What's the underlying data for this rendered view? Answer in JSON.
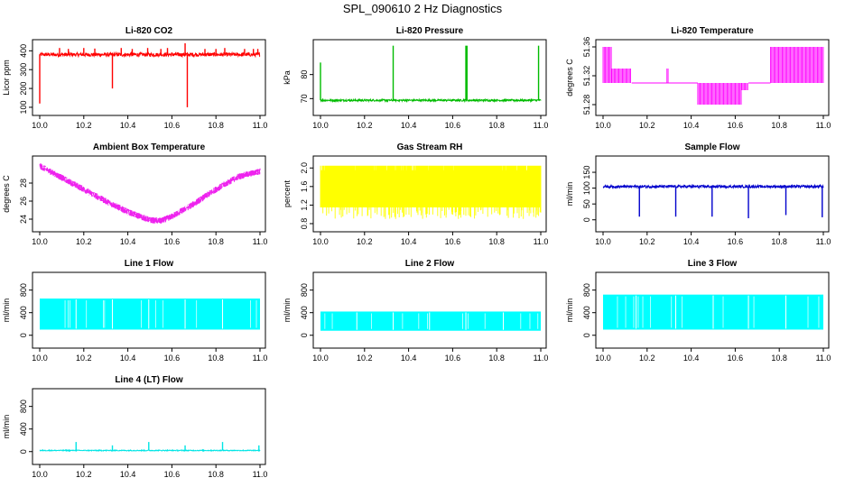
{
  "figure_title": "SPL_090610  2 Hz Diagnostics",
  "chart_data": [
    {
      "id": "co2",
      "type": "line",
      "title": "Li-820 CO2",
      "ylabel": "Licor ppm",
      "color": "#ff0000",
      "x_range": [
        10.0,
        11.0
      ],
      "ylim": [
        95,
        440
      ],
      "x_ticks": [
        "10.0",
        "10.2",
        "10.4",
        "10.6",
        "10.8",
        "11.0"
      ],
      "y_ticks": [
        "100",
        "200",
        "300",
        "400"
      ],
      "base": 380,
      "noise": 10,
      "spikes": [
        [
          10.0,
          120
        ],
        [
          10.09,
          415
        ],
        [
          10.13,
          410
        ],
        [
          10.2,
          415
        ],
        [
          10.25,
          412
        ],
        [
          10.33,
          200
        ],
        [
          10.37,
          415
        ],
        [
          10.42,
          410
        ],
        [
          10.49,
          415
        ],
        [
          10.55,
          410
        ],
        [
          10.58,
          415
        ],
        [
          10.66,
          440
        ],
        [
          10.67,
          100
        ],
        [
          10.75,
          410
        ],
        [
          10.8,
          410
        ],
        [
          10.84,
          415
        ],
        [
          10.93,
          410
        ],
        [
          10.97,
          410
        ],
        [
          10.99,
          410
        ]
      ]
    },
    {
      "id": "pres",
      "type": "line",
      "title": "Li-820 Pressure",
      "ylabel": "kPa",
      "color": "#00bb00",
      "x_range": [
        10.0,
        11.0
      ],
      "ylim": [
        66,
        93
      ],
      "x_ticks": [
        "10.0",
        "10.2",
        "10.4",
        "10.6",
        "10.8",
        "11.0"
      ],
      "y_ticks": [
        "70",
        "80"
      ],
      "base": 69.3,
      "noise": 0.4,
      "spikes": [
        [
          10.0,
          85
        ],
        [
          10.33,
          92
        ],
        [
          10.66,
          92
        ],
        [
          10.665,
          92
        ],
        [
          10.99,
          92
        ]
      ]
    },
    {
      "id": "temp",
      "type": "band",
      "title": "Li-820 Temperature",
      "ylabel": "degrees C",
      "color": "#ff00ff",
      "x_range": [
        10.0,
        11.0
      ],
      "ylim": [
        51.275,
        51.365
      ],
      "x_ticks": [
        "10.0",
        "10.2",
        "10.4",
        "10.6",
        "10.8",
        "11.0"
      ],
      "y_ticks": [
        "51.28",
        "51.32",
        "51.36"
      ],
      "segments": [
        [
          10.0,
          10.04,
          51.31,
          51.36
        ],
        [
          10.04,
          10.13,
          51.31,
          51.33
        ],
        [
          10.13,
          10.43,
          51.31,
          51.31
        ],
        [
          10.29,
          10.3,
          51.31,
          51.33
        ],
        [
          10.43,
          10.63,
          51.28,
          51.31
        ],
        [
          10.63,
          10.66,
          51.3,
          51.31
        ],
        [
          10.66,
          10.76,
          51.31,
          51.31
        ],
        [
          10.76,
          11.0,
          51.31,
          51.36
        ]
      ]
    },
    {
      "id": "box",
      "type": "band",
      "title": "Ambient Box Temperature",
      "ylabel": "degrees C",
      "color": "#ee22ee",
      "x_range": [
        10.0,
        11.0
      ],
      "ylim": [
        23.4,
        30.6
      ],
      "x_ticks": [
        "10.0",
        "10.2",
        "10.4",
        "10.6",
        "10.8",
        "11.0"
      ],
      "y_ticks": [
        "24",
        "26",
        "28"
      ],
      "curve": [
        [
          10.0,
          29.9
        ],
        [
          10.1,
          28.6
        ],
        [
          10.2,
          27.3
        ],
        [
          10.3,
          26.0
        ],
        [
          10.4,
          24.8
        ],
        [
          10.5,
          23.9
        ],
        [
          10.55,
          23.8
        ],
        [
          10.6,
          24.3
        ],
        [
          10.7,
          25.7
        ],
        [
          10.8,
          27.3
        ],
        [
          10.9,
          28.7
        ],
        [
          11.0,
          29.3
        ]
      ],
      "half_width": 0.35
    },
    {
      "id": "rh",
      "type": "band",
      "title": "Gas Stream RH",
      "ylabel": "percent",
      "color": "#ffff00",
      "x_range": [
        10.0,
        11.0
      ],
      "ylim": [
        0.78,
        2.18
      ],
      "x_ticks": [
        "10.0",
        "10.2",
        "10.4",
        "10.6",
        "10.8",
        "11.0"
      ],
      "y_ticks": [
        "0.8",
        "1.2",
        "1.6",
        "2.0"
      ],
      "low": 0.9,
      "high": 2.05,
      "dense_low": 1.15,
      "dense_high": 1.95
    },
    {
      "id": "sample",
      "type": "line",
      "title": "Sample Flow",
      "ylabel": "ml/min",
      "color": "#0000cc",
      "x_range": [
        10.0,
        11.0
      ],
      "ylim": [
        -15,
        190
      ],
      "x_ticks": [
        "10.0",
        "10.2",
        "10.4",
        "10.6",
        "10.8",
        "11.0"
      ],
      "y_ticks": [
        "0",
        "50",
        "100",
        "150"
      ],
      "base": 105,
      "noise": 4,
      "spikes": [
        [
          10.165,
          10
        ],
        [
          10.33,
          10
        ],
        [
          10.495,
          10
        ],
        [
          10.66,
          5
        ],
        [
          10.83,
          15
        ],
        [
          10.995,
          8
        ]
      ]
    },
    {
      "id": "line1",
      "type": "flow",
      "title": "Line 1 Flow",
      "ylabel": "ml/min",
      "color": "#00ffff",
      "x_range": [
        10.0,
        11.0
      ],
      "ylim": [
        -100,
        1050
      ],
      "x_ticks": [
        "10.0",
        "10.2",
        "10.4",
        "10.6",
        "10.8",
        "11.0"
      ],
      "y_ticks": [
        "0",
        "400",
        "800"
      ],
      "low": 100,
      "high": 650,
      "gaps": [
        10.165,
        10.33,
        10.495,
        10.66,
        10.83
      ],
      "spikes": []
    },
    {
      "id": "line2",
      "type": "flow",
      "title": "Line 2 Flow",
      "ylabel": "ml/min",
      "color": "#00ffff",
      "x_range": [
        10.0,
        11.0
      ],
      "ylim": [
        -100,
        1050
      ],
      "x_ticks": [
        "10.0",
        "10.2",
        "10.4",
        "10.6",
        "10.8",
        "11.0"
      ],
      "y_ticks": [
        "0",
        "400",
        "800"
      ],
      "low": 80,
      "high": 420,
      "gaps": [
        10.165,
        10.33,
        10.495,
        10.66,
        10.83
      ],
      "spikes": []
    },
    {
      "id": "line3",
      "type": "flow",
      "title": "Line 3 Flow",
      "ylabel": "ml/min",
      "color": "#00ffff",
      "x_range": [
        10.0,
        11.0
      ],
      "ylim": [
        -100,
        1050
      ],
      "x_ticks": [
        "10.0",
        "10.2",
        "10.4",
        "10.6",
        "10.8",
        "11.0"
      ],
      "y_ticks": [
        "0",
        "400",
        "800"
      ],
      "low": 100,
      "high": 720,
      "gaps": [
        10.15,
        10.33,
        10.5,
        10.66,
        10.83
      ],
      "spikes": []
    },
    {
      "id": "line4",
      "type": "line",
      "title": "Line 4 (LT) Flow",
      "ylabel": "ml/min",
      "color": "#00e5e5",
      "x_range": [
        10.0,
        11.0
      ],
      "ylim": [
        -100,
        1050
      ],
      "x_ticks": [
        "10.0",
        "10.2",
        "10.4",
        "10.6",
        "10.8",
        "11.0"
      ],
      "y_ticks": [
        "0",
        "400",
        "800"
      ],
      "base": 20,
      "noise": 8,
      "spikes": [
        [
          10.165,
          170
        ],
        [
          10.33,
          110
        ],
        [
          10.495,
          170
        ],
        [
          10.66,
          110
        ],
        [
          10.83,
          170
        ],
        [
          10.995,
          110
        ]
      ]
    }
  ]
}
